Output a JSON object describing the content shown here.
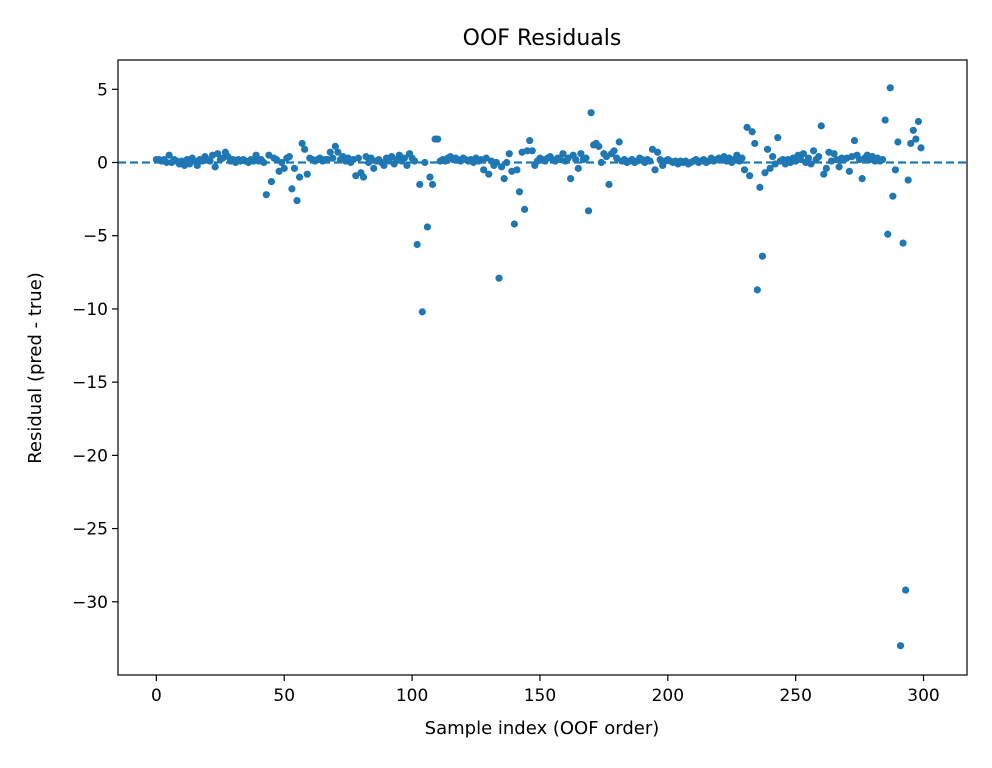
{
  "chart_data": {
    "type": "scatter",
    "title": "OOF Residuals",
    "xlabel": "Sample index (OOF order)",
    "ylabel": "Residual (pred - true)",
    "xlim": [
      -15,
      317
    ],
    "ylim": [
      -35,
      7
    ],
    "xticks": [
      0,
      50,
      100,
      150,
      200,
      250,
      300
    ],
    "yticks": [
      5,
      0,
      -5,
      -10,
      -15,
      -20,
      -25,
      -30
    ],
    "ytick_labels": [
      "5",
      "0",
      "−5",
      "−10",
      "−15",
      "−20",
      "−25",
      "−30"
    ],
    "grid": false,
    "legend": false,
    "reference_line": {
      "y": 0,
      "style": "dashed"
    },
    "color": "#1f77b4",
    "points": [
      [
        0,
        0.2
      ],
      [
        1,
        0.2
      ],
      [
        2,
        0.1
      ],
      [
        3,
        0.2
      ],
      [
        4,
        0.0
      ],
      [
        5,
        0.5
      ],
      [
        6,
        0.0
      ],
      [
        7,
        0.2
      ],
      [
        8,
        0.1
      ],
      [
        9,
        -0.1
      ],
      [
        10,
        0.1
      ],
      [
        11,
        -0.2
      ],
      [
        12,
        0.2
      ],
      [
        13,
        -0.1
      ],
      [
        14,
        0.3
      ],
      [
        15,
        0.1
      ],
      [
        16,
        -0.2
      ],
      [
        17,
        0.2
      ],
      [
        18,
        0.1
      ],
      [
        19,
        0.4
      ],
      [
        20,
        0.2
      ],
      [
        21,
        0.1
      ],
      [
        22,
        0.5
      ],
      [
        23,
        -0.3
      ],
      [
        24,
        0.6
      ],
      [
        25,
        0.2
      ],
      [
        26,
        0.3
      ],
      [
        27,
        0.7
      ],
      [
        28,
        0.4
      ],
      [
        29,
        0.1
      ],
      [
        30,
        0.2
      ],
      [
        31,
        0.0
      ],
      [
        32,
        0.2
      ],
      [
        33,
        0.1
      ],
      [
        34,
        0.2
      ],
      [
        35,
        0.1
      ],
      [
        36,
        0.0
      ],
      [
        37,
        0.2
      ],
      [
        38,
        0.1
      ],
      [
        39,
        0.5
      ],
      [
        40,
        0.1
      ],
      [
        41,
        0.2
      ],
      [
        42,
        0.0
      ],
      [
        43,
        -2.2
      ],
      [
        44,
        0.5
      ],
      [
        45,
        -1.3
      ],
      [
        46,
        0.3
      ],
      [
        47,
        0.2
      ],
      [
        48,
        -0.6
      ],
      [
        49,
        0.0
      ],
      [
        50,
        -0.4
      ],
      [
        51,
        0.3
      ],
      [
        52,
        0.4
      ],
      [
        53,
        -1.8
      ],
      [
        54,
        -0.4
      ],
      [
        55,
        -2.6
      ],
      [
        56,
        -1.0
      ],
      [
        57,
        1.3
      ],
      [
        58,
        0.9
      ],
      [
        59,
        -0.8
      ],
      [
        60,
        0.3
      ],
      [
        61,
        0.2
      ],
      [
        62,
        0.1
      ],
      [
        63,
        0.2
      ],
      [
        64,
        0.3
      ],
      [
        65,
        0.1
      ],
      [
        66,
        0.2
      ],
      [
        67,
        0.2
      ],
      [
        68,
        0.7
      ],
      [
        69,
        0.3
      ],
      [
        70,
        1.1
      ],
      [
        71,
        0.7
      ],
      [
        72,
        0.2
      ],
      [
        73,
        0.4
      ],
      [
        74,
        0.1
      ],
      [
        75,
        0.3
      ],
      [
        76,
        0.0
      ],
      [
        77,
        0.2
      ],
      [
        78,
        -0.9
      ],
      [
        79,
        0.3
      ],
      [
        80,
        -0.7
      ],
      [
        81,
        -1.0
      ],
      [
        82,
        0.4
      ],
      [
        83,
        0.0
      ],
      [
        84,
        0.3
      ],
      [
        85,
        -0.4
      ],
      [
        86,
        0.1
      ],
      [
        87,
        0.2
      ],
      [
        88,
        0.0
      ],
      [
        89,
        -0.2
      ],
      [
        90,
        0.3
      ],
      [
        91,
        0.1
      ],
      [
        92,
        0.4
      ],
      [
        93,
        -0.1
      ],
      [
        94,
        0.2
      ],
      [
        95,
        0.5
      ],
      [
        96,
        0.1
      ],
      [
        97,
        0.3
      ],
      [
        98,
        -0.2
      ],
      [
        99,
        0.6
      ],
      [
        100,
        0.3
      ],
      [
        101,
        0.1
      ],
      [
        102,
        -5.6
      ],
      [
        103,
        -1.5
      ],
      [
        104,
        -10.2
      ],
      [
        105,
        0.0
      ],
      [
        106,
        -4.4
      ],
      [
        107,
        -1.0
      ],
      [
        108,
        -1.5
      ],
      [
        109,
        1.6
      ],
      [
        110,
        1.6
      ],
      [
        111,
        0.1
      ],
      [
        112,
        0.2
      ],
      [
        113,
        0.1
      ],
      [
        114,
        0.3
      ],
      [
        115,
        0.4
      ],
      [
        116,
        0.2
      ],
      [
        117,
        0.3
      ],
      [
        118,
        0.2
      ],
      [
        119,
        0.1
      ],
      [
        120,
        0.3
      ],
      [
        121,
        0.2
      ],
      [
        122,
        0.1
      ],
      [
        123,
        0.2
      ],
      [
        124,
        0.0
      ],
      [
        125,
        0.3
      ],
      [
        126,
        0.1
      ],
      [
        127,
        0.2
      ],
      [
        128,
        -0.5
      ],
      [
        129,
        0.3
      ],
      [
        130,
        -0.8
      ],
      [
        131,
        0.1
      ],
      [
        132,
        -0.2
      ],
      [
        133,
        0.0
      ],
      [
        134,
        -7.9
      ],
      [
        135,
        -0.3
      ],
      [
        136,
        -1.1
      ],
      [
        137,
        0.0
      ],
      [
        138,
        0.6
      ],
      [
        139,
        -0.6
      ],
      [
        140,
        -4.2
      ],
      [
        141,
        -0.5
      ],
      [
        142,
        -2.0
      ],
      [
        143,
        0.7
      ],
      [
        144,
        -3.2
      ],
      [
        145,
        0.8
      ],
      [
        146,
        1.5
      ],
      [
        147,
        0.8
      ],
      [
        148,
        -0.2
      ],
      [
        149,
        0.1
      ],
      [
        150,
        0.3
      ],
      [
        151,
        0.2
      ],
      [
        152,
        0.1
      ],
      [
        153,
        0.3
      ],
      [
        154,
        0.4
      ],
      [
        155,
        0.2
      ],
      [
        156,
        0.1
      ],
      [
        157,
        0.3
      ],
      [
        158,
        0.2
      ],
      [
        159,
        0.6
      ],
      [
        160,
        0.1
      ],
      [
        161,
        0.3
      ],
      [
        162,
        -1.1
      ],
      [
        163,
        0.5
      ],
      [
        164,
        0.2
      ],
      [
        165,
        -0.4
      ],
      [
        166,
        0.6
      ],
      [
        167,
        0.2
      ],
      [
        168,
        0.3
      ],
      [
        169,
        -3.3
      ],
      [
        170,
        3.4
      ],
      [
        171,
        1.2
      ],
      [
        172,
        1.3
      ],
      [
        173,
        1.1
      ],
      [
        174,
        0.0
      ],
      [
        175,
        0.6
      ],
      [
        176,
        0.4
      ],
      [
        177,
        -1.5
      ],
      [
        178,
        0.6
      ],
      [
        179,
        0.8
      ],
      [
        180,
        0.3
      ],
      [
        181,
        1.4
      ],
      [
        182,
        0.1
      ],
      [
        183,
        0.2
      ],
      [
        184,
        0.0
      ],
      [
        185,
        0.1
      ],
      [
        186,
        0.2
      ],
      [
        187,
        0.0
      ],
      [
        188,
        0.1
      ],
      [
        189,
        0.3
      ],
      [
        190,
        0.2
      ],
      [
        191,
        0.0
      ],
      [
        192,
        0.2
      ],
      [
        193,
        0.1
      ],
      [
        194,
        0.9
      ],
      [
        195,
        -0.5
      ],
      [
        196,
        0.7
      ],
      [
        197,
        0.2
      ],
      [
        198,
        -0.2
      ],
      [
        199,
        0.1
      ],
      [
        200,
        0.2
      ],
      [
        201,
        0.1
      ],
      [
        202,
        0.0
      ],
      [
        203,
        0.1
      ],
      [
        204,
        -0.1
      ],
      [
        205,
        0.1
      ],
      [
        206,
        0.0
      ],
      [
        207,
        0.1
      ],
      [
        208,
        -0.1
      ],
      [
        209,
        0.0
      ],
      [
        210,
        0.1
      ],
      [
        211,
        0.2
      ],
      [
        212,
        0.0
      ],
      [
        213,
        0.1
      ],
      [
        214,
        0.2
      ],
      [
        215,
        0.0
      ],
      [
        216,
        0.1
      ],
      [
        217,
        0.3
      ],
      [
        218,
        0.1
      ],
      [
        219,
        0.2
      ],
      [
        220,
        0.3
      ],
      [
        221,
        0.2
      ],
      [
        222,
        0.4
      ],
      [
        223,
        0.1
      ],
      [
        224,
        0.3
      ],
      [
        225,
        0.0
      ],
      [
        226,
        0.2
      ],
      [
        227,
        0.5
      ],
      [
        228,
        0.1
      ],
      [
        229,
        0.3
      ],
      [
        230,
        -0.5
      ],
      [
        231,
        2.4
      ],
      [
        232,
        -0.9
      ],
      [
        233,
        2.1
      ],
      [
        234,
        1.3
      ],
      [
        235,
        -8.7
      ],
      [
        236,
        -1.7
      ],
      [
        237,
        -6.4
      ],
      [
        238,
        -0.7
      ],
      [
        239,
        0.9
      ],
      [
        240,
        -0.4
      ],
      [
        241,
        0.4
      ],
      [
        242,
        -0.1
      ],
      [
        243,
        1.7
      ],
      [
        244,
        0.1
      ],
      [
        245,
        0.2
      ],
      [
        246,
        -0.1
      ],
      [
        247,
        0.2
      ],
      [
        248,
        0.0
      ],
      [
        249,
        0.3
      ],
      [
        250,
        0.1
      ],
      [
        251,
        0.5
      ],
      [
        252,
        0.2
      ],
      [
        253,
        0.6
      ],
      [
        254,
        0.0
      ],
      [
        255,
        0.3
      ],
      [
        256,
        -0.1
      ],
      [
        257,
        0.8
      ],
      [
        258,
        0.2
      ],
      [
        259,
        0.4
      ],
      [
        260,
        2.5
      ],
      [
        261,
        -0.8
      ],
      [
        262,
        -0.4
      ],
      [
        263,
        0.7
      ],
      [
        264,
        0.1
      ],
      [
        265,
        0.6
      ],
      [
        266,
        0.2
      ],
      [
        267,
        -0.3
      ],
      [
        268,
        0.3
      ],
      [
        269,
        0.2
      ],
      [
        270,
        0.3
      ],
      [
        271,
        -0.6
      ],
      [
        272,
        0.4
      ],
      [
        273,
        1.5
      ],
      [
        274,
        0.5
      ],
      [
        275,
        0.2
      ],
      [
        276,
        -1.1
      ],
      [
        277,
        0.3
      ],
      [
        278,
        0.5
      ],
      [
        279,
        0.2
      ],
      [
        280,
        0.4
      ],
      [
        281,
        0.1
      ],
      [
        282,
        0.3
      ],
      [
        283,
        0.1
      ],
      [
        284,
        0.2
      ],
      [
        285,
        2.9
      ],
      [
        286,
        -4.9
      ],
      [
        287,
        5.1
      ],
      [
        288,
        -2.3
      ],
      [
        289,
        -0.5
      ],
      [
        290,
        1.4
      ],
      [
        291,
        -33.0
      ],
      [
        292,
        -5.5
      ],
      [
        293,
        -29.2
      ],
      [
        294,
        -1.2
      ],
      [
        295,
        1.3
      ],
      [
        296,
        2.2
      ],
      [
        297,
        1.6
      ],
      [
        298,
        2.8
      ],
      [
        299,
        1.0
      ]
    ]
  }
}
